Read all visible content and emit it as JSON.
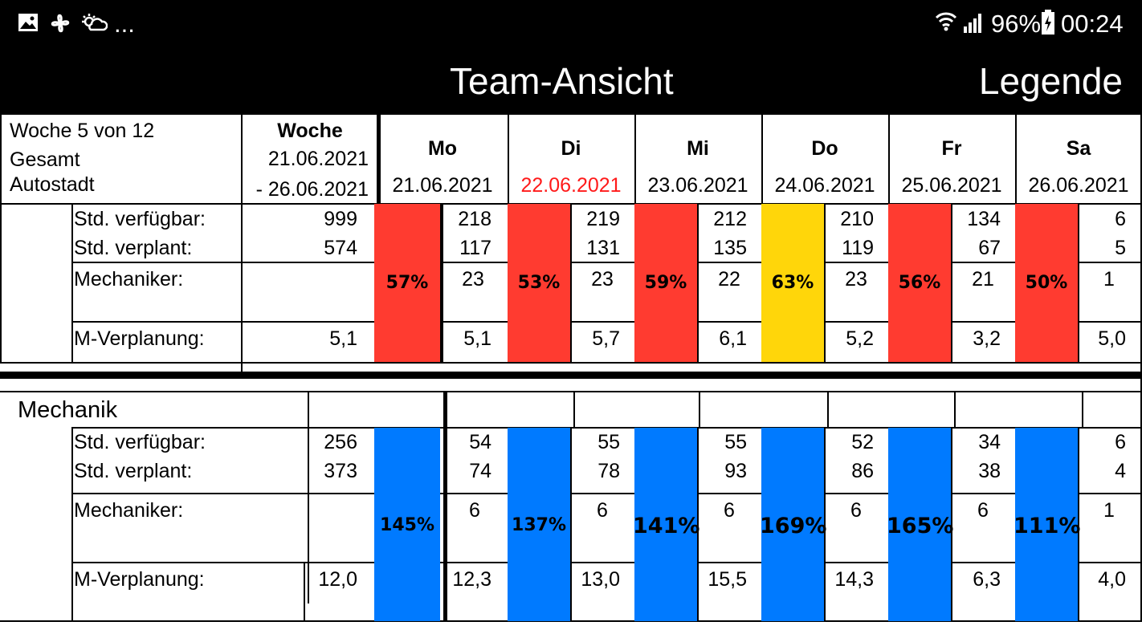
{
  "status": {
    "battery": "96%",
    "time": "00:24",
    "more": "..."
  },
  "header": {
    "title": "Team-Ansicht",
    "legend": "Legende"
  },
  "summary": {
    "info": [
      "Woche 5 von 12",
      "Gesamt",
      "Autostadt"
    ],
    "week_label": "Woche",
    "week_from": "21.06.2021",
    "week_to": "- 26.06.2021",
    "days": [
      {
        "name": "Mo",
        "date": "21.06.2021",
        "date_color": "#000000"
      },
      {
        "name": "Di",
        "date": "22.06.2021",
        "date_color": "#ff1a1a"
      },
      {
        "name": "Mi",
        "date": "23.06.2021",
        "date_color": "#000000"
      },
      {
        "name": "Do",
        "date": "24.06.2021",
        "date_color": "#000000"
      },
      {
        "name": "Fr",
        "date": "25.06.2021",
        "date_color": "#000000"
      },
      {
        "name": "Sa",
        "date": "26.06.2021",
        "date_color": "#000000"
      }
    ]
  },
  "row_labels": {
    "available": "Std. verfügbar:",
    "planned": "Std. verplant:",
    "mechanics": "Mechaniker:",
    "m_planning": "M-Verplanung:"
  },
  "gesamt": {
    "week": {
      "available": "999",
      "planned": "574",
      "mechanics": "",
      "m_planning": "5,1"
    },
    "days": [
      {
        "pct": "57%",
        "color": "#ff3b30",
        "available": "218",
        "planned": "117",
        "mechanics": "23",
        "m_planning": "5,1"
      },
      {
        "pct": "53%",
        "color": "#ff3b30",
        "available": "219",
        "planned": "131",
        "mechanics": "23",
        "m_planning": "5,7"
      },
      {
        "pct": "59%",
        "color": "#ff3b30",
        "available": "212",
        "planned": "135",
        "mechanics": "22",
        "m_planning": "6,1"
      },
      {
        "pct": "63%",
        "color": "#ffd60a",
        "available": "210",
        "planned": "119",
        "mechanics": "23",
        "m_planning": "5,2"
      },
      {
        "pct": "56%",
        "color": "#ff3b30",
        "available": "134",
        "planned": "67",
        "mechanics": "21",
        "m_planning": "3,2"
      },
      {
        "pct": "50%",
        "color": "#ff3b30",
        "available": "6",
        "planned": "5",
        "mechanics": "1",
        "m_planning": "5,0"
      }
    ]
  },
  "mechanik": {
    "title": "Mechanik",
    "week": {
      "available": "256",
      "planned": "373",
      "mechanics": "",
      "m_planning": "12,0"
    },
    "days": [
      {
        "pct": "145%",
        "color": "#007aff",
        "available": "54",
        "planned": "74",
        "mechanics": "6",
        "m_planning": "12,3"
      },
      {
        "pct": "137%",
        "color": "#007aff",
        "available": "55",
        "planned": "78",
        "mechanics": "6",
        "m_planning": "13,0"
      },
      {
        "pct": "141%",
        "color": "#007aff",
        "available": "55",
        "planned": "93",
        "mechanics": "6",
        "m_planning": "15,5"
      },
      {
        "pct": "169%",
        "color": "#007aff",
        "available": "52",
        "planned": "86",
        "mechanics": "6",
        "m_planning": "14,3"
      },
      {
        "pct": "165%",
        "color": "#007aff",
        "available": "34",
        "planned": "38",
        "mechanics": "6",
        "m_planning": "6,3"
      },
      {
        "pct": "111%",
        "color": "#007aff",
        "available": "6",
        "planned": "4",
        "mechanics": "1",
        "m_planning": "4,0"
      }
    ]
  }
}
